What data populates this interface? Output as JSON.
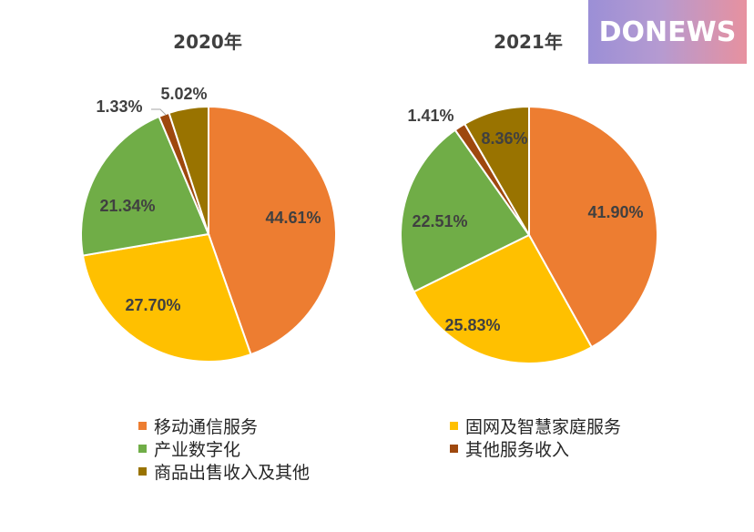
{
  "logo": {
    "text": "DONEWS"
  },
  "legend": [
    {
      "label": "移动通信服务",
      "color": "#ed7d31"
    },
    {
      "label": "固网及智慧家庭服务",
      "color": "#ffc000"
    },
    {
      "label": "产业数字化",
      "color": "#70ad47"
    },
    {
      "label": "其他服务收入",
      "color": "#9e480e"
    },
    {
      "label": "商品出售收入及其他",
      "color": "#997300"
    }
  ],
  "chart_data": [
    {
      "type": "pie",
      "title": "2020年",
      "categories": [
        "移动通信服务",
        "固网及智慧家庭服务",
        "产业数字化",
        "其他服务收入",
        "商品出售收入及其他"
      ],
      "values": [
        44.61,
        27.7,
        21.34,
        1.33,
        5.02
      ],
      "labels": [
        "44.61%",
        "27.70%",
        "21.34%",
        "1.33%",
        "5.02%"
      ],
      "colors": [
        "#ed7d31",
        "#ffc000",
        "#70ad47",
        "#9e480e",
        "#997300"
      ]
    },
    {
      "type": "pie",
      "title": "2021年",
      "categories": [
        "移动通信服务",
        "固网及智慧家庭服务",
        "产业数字化",
        "其他服务收入",
        "商品出售收入及其他"
      ],
      "values": [
        41.9,
        25.83,
        22.51,
        1.41,
        8.36
      ],
      "labels": [
        "41.90%",
        "25.83%",
        "22.51%",
        "1.41%",
        "8.36%"
      ],
      "colors": [
        "#ed7d31",
        "#ffc000",
        "#70ad47",
        "#9e480e",
        "#997300"
      ]
    }
  ]
}
